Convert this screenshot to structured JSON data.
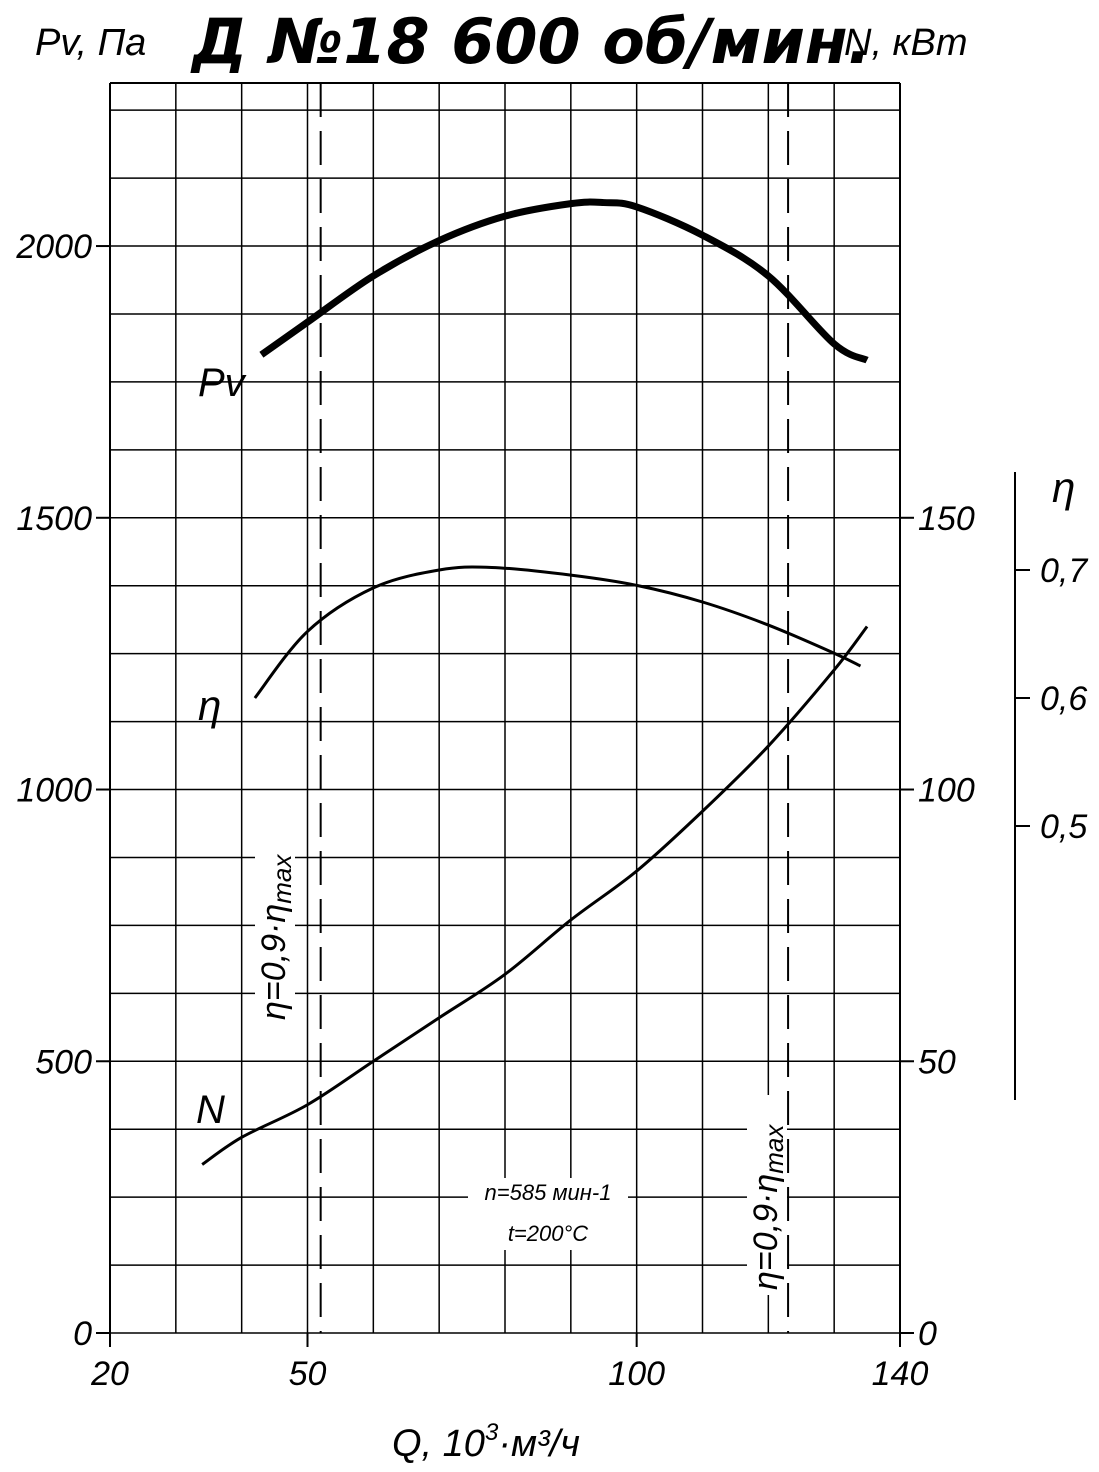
{
  "chart_data": {
    "type": "line",
    "title": "Д №18 600 об/мин.",
    "left_axis_label": "Pv, Па",
    "right_axis_label": "N, кВт",
    "eta_axis_label": "η",
    "x_axis": {
      "label_main": "Q, 10",
      "label_exp": "3",
      "label_tail": "·м³/ч",
      "ticks": [
        20,
        50,
        100,
        140
      ],
      "range": [
        20,
        140
      ]
    },
    "y_left": {
      "ticks": [
        0,
        500,
        1000,
        1500,
        2000
      ],
      "range": [
        0,
        2300
      ]
    },
    "y_right": {
      "ticks": [
        0,
        50,
        100,
        150
      ],
      "range": [
        0,
        230
      ]
    },
    "y_eta": {
      "ticks": [
        "0,5",
        "0,6",
        "0,7"
      ],
      "tick_values": [
        0.5,
        0.6,
        0.7
      ]
    },
    "grid": true,
    "series": [
      {
        "name": "Pv",
        "axis": "left",
        "width": "thick",
        "points": [
          [
            43,
            1800
          ],
          [
            50,
            1860
          ],
          [
            60,
            1945
          ],
          [
            70,
            2010
          ],
          [
            80,
            2055
          ],
          [
            90,
            2078
          ],
          [
            95,
            2080
          ],
          [
            100,
            2072
          ],
          [
            110,
            2020
          ],
          [
            120,
            1945
          ],
          [
            130,
            1820
          ],
          [
            135,
            1790
          ]
        ]
      },
      {
        "name": "η",
        "axis": "eta",
        "points": [
          [
            42,
            0.6
          ],
          [
            50,
            0.652
          ],
          [
            60,
            0.686
          ],
          [
            70,
            0.7
          ],
          [
            78,
            0.702
          ],
          [
            90,
            0.696
          ],
          [
            100,
            0.688
          ],
          [
            110,
            0.675
          ],
          [
            120,
            0.657
          ],
          [
            130,
            0.635
          ],
          [
            134,
            0.625
          ]
        ]
      },
      {
        "name": "N",
        "axis": "right",
        "points": [
          [
            34,
            31
          ],
          [
            40,
            36
          ],
          [
            50,
            42
          ],
          [
            60,
            50
          ],
          [
            70,
            58
          ],
          [
            80,
            66
          ],
          [
            90,
            76
          ],
          [
            100,
            85
          ],
          [
            110,
            96
          ],
          [
            120,
            108
          ],
          [
            130,
            122
          ],
          [
            135,
            130
          ]
        ]
      }
    ],
    "efficiency_boundaries": [
      {
        "q": 52,
        "label_main": "η=0,9·η",
        "label_sub": "max"
      },
      {
        "q": 123,
        "label_main": "η=0,9·η",
        "label_sub": "max"
      }
    ],
    "annotations": [
      "n=585 мин-1",
      "t=200°C"
    ]
  }
}
